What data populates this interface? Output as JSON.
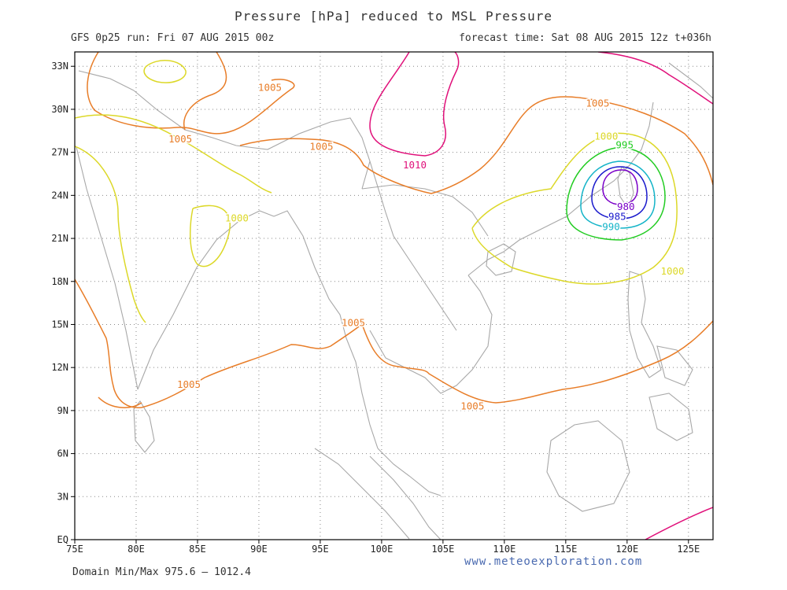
{
  "header": {
    "title": "Pressure [hPa] reduced to MSL Pressure",
    "run": "GFS 0p25 run: Fri 07 AUG 2015 00z",
    "forecast": "forecast time: Sat 08 AUG 2015 12z  t+036h"
  },
  "footer": {
    "domain_minmax": "Domain Min/Max 975.6 — 1012.4",
    "source": "www.meteoexploration.com"
  },
  "axes": {
    "lon_range": [
      75,
      127
    ],
    "lat_range": [
      0,
      34
    ],
    "x_ticks": [
      "75E",
      "80E",
      "85E",
      "90E",
      "95E",
      "100E",
      "105E",
      "110E",
      "115E",
      "120E",
      "125E"
    ],
    "y_ticks": [
      "EQ",
      "3N",
      "6N",
      "9N",
      "12N",
      "15N",
      "18N",
      "21N",
      "24N",
      "27N",
      "30N",
      "33N"
    ],
    "grid": true
  },
  "colors": {
    "c975": "#b000c0",
    "c980": "#7a00c8",
    "c985": "#1a1acc",
    "c990": "#14b4c8",
    "c995": "#22cc22",
    "c1000": "#dcd828",
    "c1005": "#e87d28",
    "c1010": "#e0107a",
    "coast": "#a8a8a8"
  },
  "contour_labels": [
    {
      "text": "1005",
      "color_key": "c1005",
      "lon": 90.9,
      "lat": 31.5
    },
    {
      "text": "1005",
      "color_key": "c1005",
      "lon": 83.6,
      "lat": 27.9
    },
    {
      "text": "1005",
      "color_key": "c1005",
      "lon": 95.1,
      "lat": 27.4
    },
    {
      "text": "1005",
      "color_key": "c1005",
      "lon": 117.6,
      "lat": 30.4
    },
    {
      "text": "1010",
      "color_key": "c1010",
      "lon": 102.7,
      "lat": 26.1
    },
    {
      "text": "1000",
      "color_key": "c1000",
      "lon": 118.3,
      "lat": 28.1
    },
    {
      "text": "995",
      "color_key": "c995",
      "lon": 119.8,
      "lat": 27.5
    },
    {
      "text": "980",
      "color_key": "c980",
      "lon": 119.9,
      "lat": 23.2
    },
    {
      "text": "985",
      "color_key": "c985",
      "lon": 119.2,
      "lat": 22.5
    },
    {
      "text": "990",
      "color_key": "c990",
      "lon": 118.7,
      "lat": 21.8
    },
    {
      "text": "1000",
      "color_key": "c1000",
      "lon": 88.2,
      "lat": 22.4
    },
    {
      "text": "1000",
      "color_key": "c1000",
      "lon": 123.7,
      "lat": 18.7
    },
    {
      "text": "1005",
      "color_key": "c1005",
      "lon": 97.7,
      "lat": 15.1
    },
    {
      "text": "1005",
      "color_key": "c1005",
      "lon": 84.3,
      "lat": 10.8
    },
    {
      "text": "1005",
      "color_key": "c1005",
      "lon": 107.4,
      "lat": 9.3
    }
  ]
}
